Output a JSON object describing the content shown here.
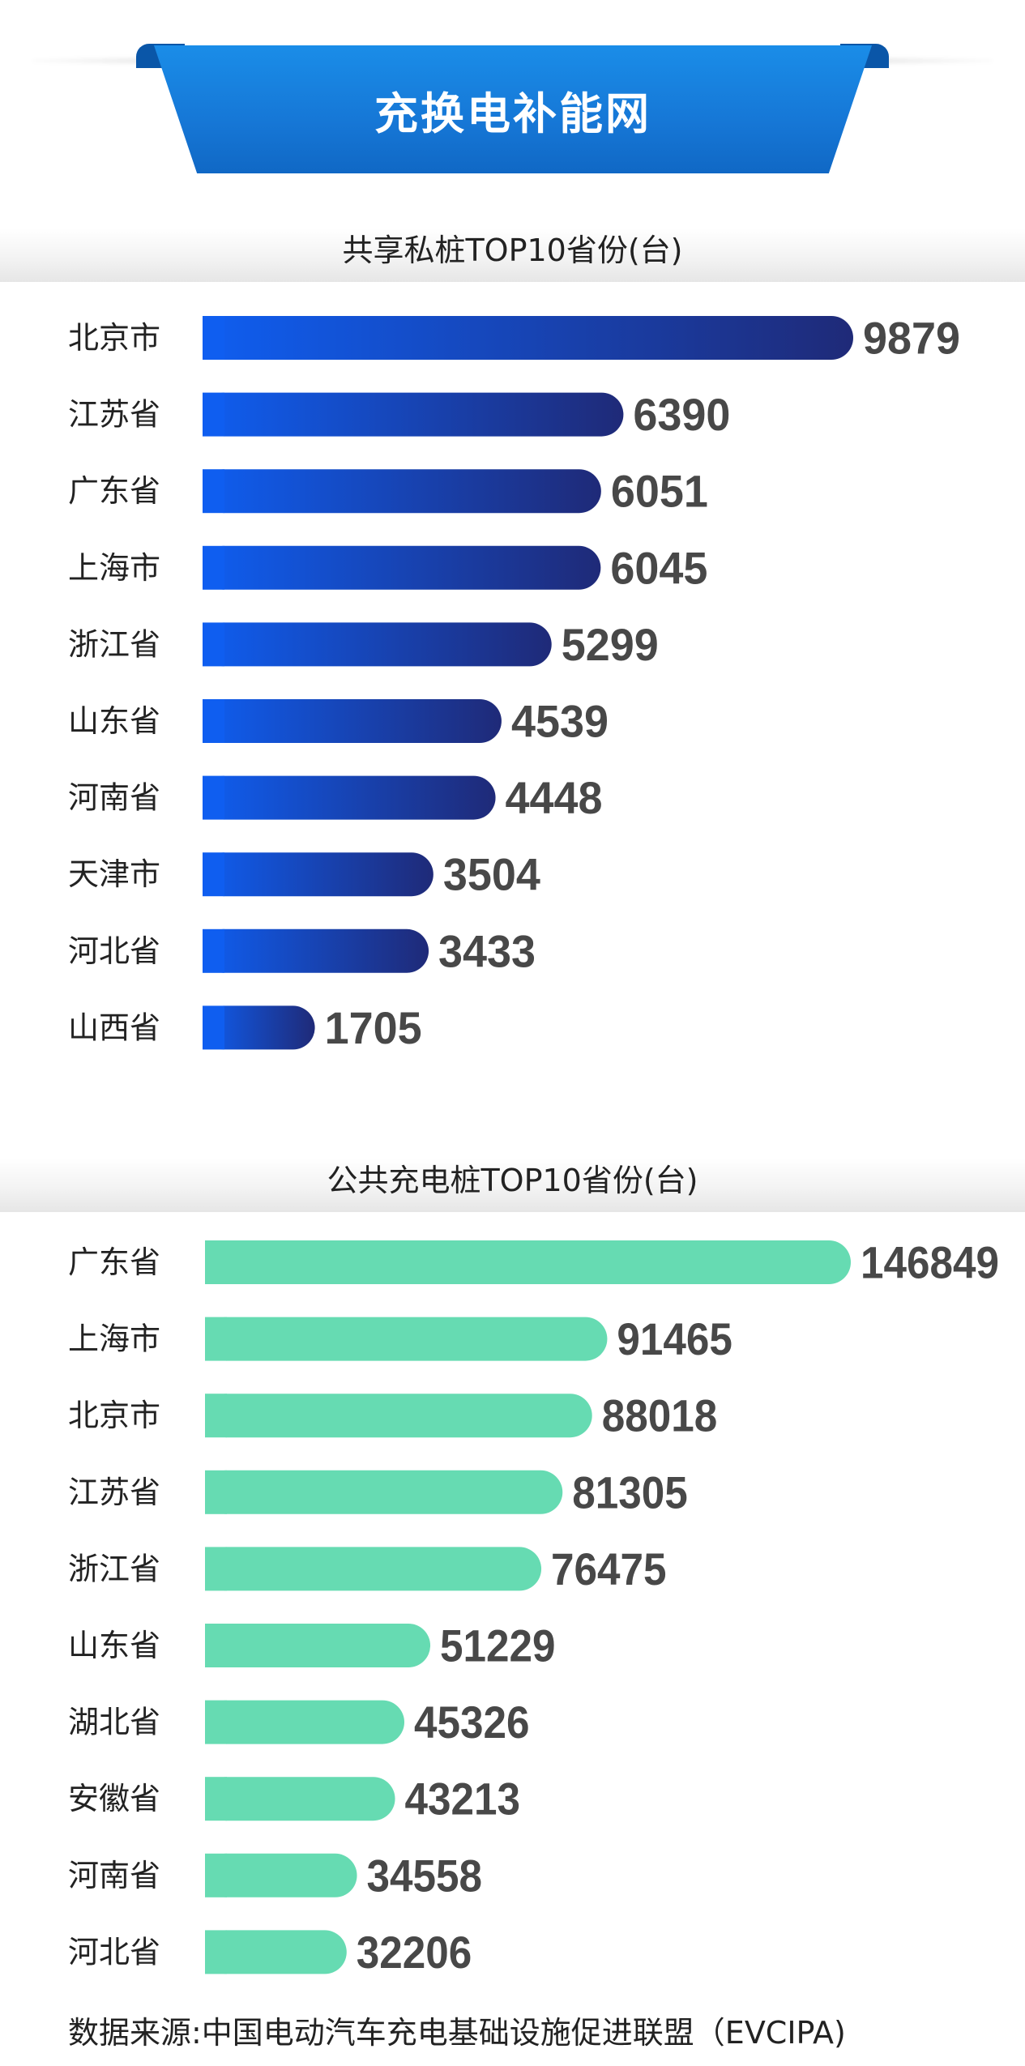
{
  "header": {
    "title": "充换电补能网",
    "accent": "#1677d6"
  },
  "chart_data": [
    {
      "type": "bar",
      "orientation": "horizontal",
      "title": "共享私桩TOP10省份(台)",
      "categories": [
        "北京市",
        "江苏省",
        "广东省",
        "上海市",
        "浙江省",
        "山东省",
        "河南省",
        "天津市",
        "河北省",
        "山西省"
      ],
      "values": [
        9879,
        6390,
        6051,
        6045,
        5299,
        4539,
        4448,
        3504,
        3433,
        1705
      ],
      "color_start": "#0f5ef0",
      "color_end": "#1f2a78",
      "data_labels": true
    },
    {
      "type": "bar",
      "orientation": "horizontal",
      "title": "公共充电桩TOP10省份(台)",
      "categories": [
        "广东省",
        "上海市",
        "北京市",
        "江苏省",
        "浙江省",
        "山东省",
        "湖北省",
        "安徽省",
        "河南省",
        "河北省"
      ],
      "values": [
        146849,
        91465,
        88018,
        81305,
        76475,
        51229,
        45326,
        43213,
        34558,
        32206
      ],
      "color": "#66dbb2",
      "data_labels": true
    }
  ],
  "footer": {
    "source": "数据来源:中国电动汽车充电基础设施促进联盟（EVCIPA)"
  }
}
